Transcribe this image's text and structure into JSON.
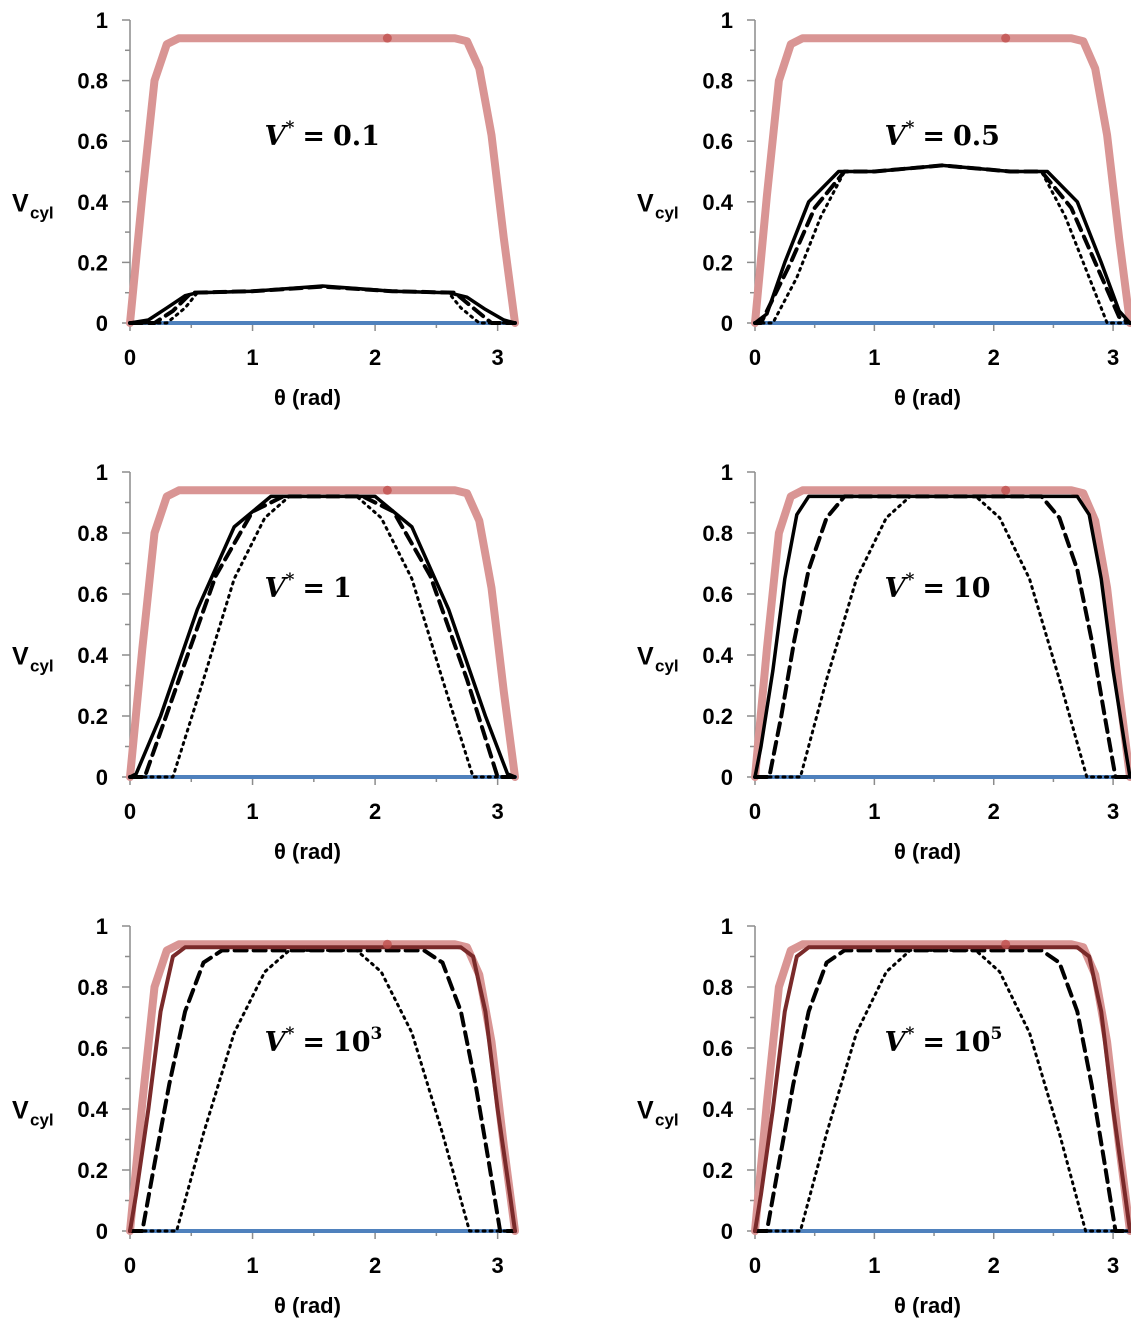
{
  "chart_data": [
    {
      "type": "line",
      "annotation": {
        "symbol": "V",
        "superscript": "*",
        "operator": "=",
        "value": "0.1",
        "exponent": ""
      },
      "xlabel": "θ (rad)",
      "ylabel": "V",
      "ylabel_sub": "cyl",
      "xlim": [
        0,
        3.1416
      ],
      "ylim": [
        0,
        1
      ],
      "xticks": [
        "0",
        "1",
        "2",
        "3"
      ],
      "yticks": [
        "0",
        "0.2",
        "0.4",
        "0.6",
        "0.8",
        "1"
      ],
      "series": [
        {
          "style": "pink",
          "x": [
            0,
            0.1,
            0.2,
            0.3,
            0.4,
            0.5,
            2.65,
            2.75,
            2.85,
            2.95,
            3.05,
            3.1416
          ],
          "values": [
            0,
            0.42,
            0.8,
            0.92,
            0.94,
            0.94,
            0.94,
            0.93,
            0.84,
            0.62,
            0.28,
            0
          ]
        },
        {
          "style": "blue",
          "x": [
            0,
            3.1416
          ],
          "values": [
            0,
            0
          ]
        },
        {
          "style": "dotted",
          "x": [
            0,
            0.3,
            0.45,
            0.55,
            1.0,
            1.57,
            2.14,
            2.6,
            2.7,
            2.85,
            3.1416
          ],
          "values": [
            0,
            0,
            0.05,
            0.1,
            0.105,
            0.12,
            0.105,
            0.1,
            0.05,
            0,
            0
          ]
        },
        {
          "style": "dashed",
          "x": [
            0,
            0.2,
            0.35,
            0.5,
            1.0,
            1.57,
            2.14,
            2.65,
            2.8,
            2.95,
            3.1416
          ],
          "values": [
            0,
            0,
            0.04,
            0.1,
            0.105,
            0.12,
            0.105,
            0.1,
            0.05,
            0,
            0
          ]
        },
        {
          "style": "solid",
          "x": [
            0,
            0.15,
            0.3,
            0.45,
            0.55,
            1.0,
            1.57,
            2.14,
            2.6,
            2.75,
            2.9,
            3.05,
            3.1416
          ],
          "values": [
            0,
            0.01,
            0.05,
            0.09,
            0.1,
            0.105,
            0.122,
            0.105,
            0.1,
            0.085,
            0.045,
            0.01,
            0
          ]
        }
      ]
    },
    {
      "type": "line",
      "annotation": {
        "symbol": "V",
        "superscript": "*",
        "operator": "=",
        "value": "0.5",
        "exponent": ""
      },
      "xlabel": "θ (rad)",
      "ylabel": "V",
      "ylabel_sub": "cyl",
      "xlim": [
        0,
        3.1416
      ],
      "ylim": [
        0,
        1
      ],
      "xticks": [
        "0",
        "1",
        "2",
        "3"
      ],
      "yticks": [
        "0",
        "0.2",
        "0.4",
        "0.6",
        "0.8",
        "1"
      ],
      "series": [
        {
          "style": "pink",
          "x": [
            0,
            0.1,
            0.2,
            0.3,
            0.4,
            0.5,
            2.65,
            2.75,
            2.85,
            2.95,
            3.05,
            3.1416
          ],
          "values": [
            0,
            0.42,
            0.8,
            0.92,
            0.94,
            0.94,
            0.94,
            0.93,
            0.84,
            0.62,
            0.28,
            0
          ]
        },
        {
          "style": "blue",
          "x": [
            0,
            3.1416
          ],
          "values": [
            0,
            0
          ]
        },
        {
          "style": "dotted",
          "x": [
            0,
            0.15,
            0.35,
            0.55,
            0.75,
            1.0,
            1.57,
            2.14,
            2.4,
            2.6,
            2.8,
            2.95,
            3.1416
          ],
          "values": [
            0,
            0,
            0.15,
            0.35,
            0.5,
            0.5,
            0.52,
            0.5,
            0.5,
            0.35,
            0.15,
            0,
            0
          ]
        },
        {
          "style": "dashed",
          "x": [
            0,
            0.05,
            0.3,
            0.5,
            0.75,
            1.0,
            1.57,
            2.14,
            2.4,
            2.65,
            2.85,
            3.05,
            3.1416
          ],
          "values": [
            0,
            0,
            0.2,
            0.38,
            0.5,
            0.5,
            0.52,
            0.5,
            0.5,
            0.38,
            0.2,
            0.02,
            0
          ]
        },
        {
          "style": "solid",
          "x": [
            0,
            0.1,
            0.25,
            0.45,
            0.7,
            1.0,
            1.57,
            2.14,
            2.45,
            2.7,
            2.9,
            3.05,
            3.1416
          ],
          "values": [
            0,
            0.03,
            0.2,
            0.4,
            0.5,
            0.5,
            0.52,
            0.5,
            0.5,
            0.4,
            0.2,
            0.04,
            0
          ]
        }
      ]
    },
    {
      "type": "line",
      "annotation": {
        "symbol": "V",
        "superscript": "*",
        "operator": "=",
        "value": "1",
        "exponent": ""
      },
      "xlabel": "θ (rad)",
      "ylabel": "V",
      "ylabel_sub": "cyl",
      "xlim": [
        0,
        3.1416
      ],
      "ylim": [
        0,
        1
      ],
      "xticks": [
        "0",
        "1",
        "2",
        "3"
      ],
      "yticks": [
        "0",
        "0.2",
        "0.4",
        "0.6",
        "0.8",
        "1"
      ],
      "series": [
        {
          "style": "pink",
          "x": [
            0,
            0.1,
            0.2,
            0.3,
            0.4,
            0.5,
            2.65,
            2.75,
            2.85,
            2.95,
            3.05,
            3.1416
          ],
          "values": [
            0,
            0.42,
            0.8,
            0.92,
            0.94,
            0.94,
            0.94,
            0.93,
            0.84,
            0.62,
            0.28,
            0
          ]
        },
        {
          "style": "blue",
          "x": [
            0,
            3.1416
          ],
          "values": [
            0,
            0
          ]
        },
        {
          "style": "dotted",
          "x": [
            0,
            0.35,
            0.6,
            0.85,
            1.1,
            1.3,
            1.57,
            1.85,
            2.05,
            2.3,
            2.55,
            2.8,
            3.1416
          ],
          "values": [
            0,
            0,
            0.32,
            0.65,
            0.85,
            0.92,
            0.92,
            0.92,
            0.85,
            0.65,
            0.32,
            0,
            0
          ]
        },
        {
          "style": "dashed",
          "x": [
            0,
            0.12,
            0.4,
            0.7,
            1.0,
            1.25,
            1.57,
            1.9,
            2.15,
            2.45,
            2.75,
            3.0,
            3.1416
          ],
          "values": [
            0,
            0,
            0.32,
            0.66,
            0.87,
            0.92,
            0.92,
            0.92,
            0.87,
            0.66,
            0.32,
            0,
            0
          ]
        },
        {
          "style": "solid",
          "x": [
            0,
            0.05,
            0.25,
            0.55,
            0.85,
            1.15,
            1.57,
            2.0,
            2.3,
            2.6,
            2.9,
            3.08,
            3.1416
          ],
          "values": [
            0,
            0.01,
            0.2,
            0.55,
            0.82,
            0.92,
            0.92,
            0.92,
            0.82,
            0.55,
            0.2,
            0.01,
            0
          ]
        }
      ]
    },
    {
      "type": "line",
      "annotation": {
        "symbol": "V",
        "superscript": "*",
        "operator": "=",
        "value": "10",
        "exponent": ""
      },
      "xlabel": "θ (rad)",
      "ylabel": "V",
      "ylabel_sub": "cyl",
      "xlim": [
        0,
        3.1416
      ],
      "ylim": [
        0,
        1
      ],
      "xticks": [
        "0",
        "1",
        "2",
        "3"
      ],
      "yticks": [
        "0",
        "0.2",
        "0.4",
        "0.6",
        "0.8",
        "1"
      ],
      "series": [
        {
          "style": "pink",
          "x": [
            0,
            0.1,
            0.2,
            0.3,
            0.4,
            0.5,
            2.65,
            2.75,
            2.85,
            2.95,
            3.05,
            3.1416
          ],
          "values": [
            0,
            0.42,
            0.8,
            0.92,
            0.94,
            0.94,
            0.94,
            0.93,
            0.84,
            0.62,
            0.28,
            0
          ]
        },
        {
          "style": "blue",
          "x": [
            0,
            3.1416
          ],
          "values": [
            0,
            0
          ]
        },
        {
          "style": "dotted",
          "x": [
            0,
            0.38,
            0.6,
            0.85,
            1.1,
            1.3,
            1.57,
            1.85,
            2.05,
            2.3,
            2.55,
            2.78,
            3.1416
          ],
          "values": [
            0,
            0,
            0.32,
            0.65,
            0.85,
            0.92,
            0.92,
            0.92,
            0.85,
            0.65,
            0.32,
            0,
            0
          ]
        },
        {
          "style": "dashed",
          "x": [
            0,
            0.12,
            0.22,
            0.33,
            0.45,
            0.6,
            0.75,
            2.4,
            2.55,
            2.7,
            2.82,
            2.93,
            3.02,
            3.1416
          ],
          "values": [
            0,
            0,
            0.2,
            0.45,
            0.68,
            0.85,
            0.92,
            0.92,
            0.85,
            0.68,
            0.45,
            0.2,
            0,
            0
          ]
        },
        {
          "style": "solid",
          "x": [
            0,
            0.05,
            0.15,
            0.25,
            0.35,
            0.45,
            2.7,
            2.8,
            2.9,
            3.0,
            3.1,
            3.1416
          ],
          "values": [
            0,
            0.1,
            0.35,
            0.65,
            0.86,
            0.92,
            0.92,
            0.86,
            0.65,
            0.35,
            0.1,
            0
          ]
        }
      ]
    },
    {
      "type": "line",
      "annotation": {
        "symbol": "V",
        "superscript": "*",
        "operator": "=",
        "value": "10",
        "exponent": "3"
      },
      "xlabel": "θ (rad)",
      "ylabel": "V",
      "ylabel_sub": "cyl",
      "xlim": [
        0,
        3.1416
      ],
      "ylim": [
        0,
        1
      ],
      "xticks": [
        "0",
        "1",
        "2",
        "3"
      ],
      "yticks": [
        "0",
        "0.2",
        "0.4",
        "0.6",
        "0.8",
        "1"
      ],
      "series": [
        {
          "style": "pink",
          "x": [
            0,
            0.1,
            0.2,
            0.3,
            0.4,
            0.5,
            2.65,
            2.75,
            2.85,
            2.95,
            3.05,
            3.1416
          ],
          "values": [
            0,
            0.42,
            0.8,
            0.92,
            0.94,
            0.94,
            0.94,
            0.93,
            0.84,
            0.62,
            0.28,
            0
          ]
        },
        {
          "style": "blue",
          "x": [
            0,
            3.1416
          ],
          "values": [
            0,
            0
          ]
        },
        {
          "style": "dotted",
          "x": [
            0,
            0.38,
            0.6,
            0.85,
            1.1,
            1.3,
            1.57,
            1.85,
            2.05,
            2.3,
            2.55,
            2.77,
            3.1416
          ],
          "values": [
            0,
            0,
            0.32,
            0.65,
            0.85,
            0.92,
            0.92,
            0.92,
            0.85,
            0.65,
            0.32,
            0,
            0
          ]
        },
        {
          "style": "dashed",
          "x": [
            0,
            0.1,
            0.2,
            0.32,
            0.45,
            0.6,
            0.75,
            2.4,
            2.55,
            2.7,
            2.82,
            2.93,
            3.02,
            3.1416
          ],
          "values": [
            0,
            0,
            0.22,
            0.48,
            0.72,
            0.88,
            0.92,
            0.92,
            0.88,
            0.72,
            0.48,
            0.22,
            0,
            0
          ]
        },
        {
          "style": "dark",
          "x": [
            0,
            0.05,
            0.15,
            0.25,
            0.35,
            0.45,
            2.7,
            2.8,
            2.9,
            3.0,
            3.1,
            3.1416
          ],
          "values": [
            0,
            0.12,
            0.4,
            0.72,
            0.9,
            0.93,
            0.93,
            0.9,
            0.72,
            0.4,
            0.12,
            0
          ]
        }
      ]
    },
    {
      "type": "line",
      "annotation": {
        "symbol": "V",
        "superscript": "*",
        "operator": "=",
        "value": "10",
        "exponent": "5"
      },
      "xlabel": "θ (rad)",
      "ylabel": "V",
      "ylabel_sub": "cyl",
      "xlim": [
        0,
        3.1416
      ],
      "ylim": [
        0,
        1
      ],
      "xticks": [
        "0",
        "1",
        "2",
        "3"
      ],
      "yticks": [
        "0",
        "0.2",
        "0.4",
        "0.6",
        "0.8",
        "1"
      ],
      "series": [
        {
          "style": "pink",
          "x": [
            0,
            0.1,
            0.2,
            0.3,
            0.4,
            0.5,
            2.65,
            2.75,
            2.85,
            2.95,
            3.05,
            3.1416
          ],
          "values": [
            0,
            0.42,
            0.8,
            0.92,
            0.94,
            0.94,
            0.94,
            0.93,
            0.84,
            0.62,
            0.28,
            0
          ]
        },
        {
          "style": "blue",
          "x": [
            0,
            3.1416
          ],
          "values": [
            0,
            0
          ]
        },
        {
          "style": "dotted",
          "x": [
            0,
            0.38,
            0.6,
            0.85,
            1.1,
            1.3,
            1.57,
            1.85,
            2.05,
            2.3,
            2.55,
            2.77,
            3.1416
          ],
          "values": [
            0,
            0,
            0.32,
            0.65,
            0.85,
            0.92,
            0.92,
            0.92,
            0.85,
            0.65,
            0.32,
            0,
            0
          ]
        },
        {
          "style": "dashed",
          "x": [
            0,
            0.1,
            0.2,
            0.32,
            0.45,
            0.6,
            0.75,
            2.4,
            2.55,
            2.7,
            2.82,
            2.93,
            3.02,
            3.1416
          ],
          "values": [
            0,
            0,
            0.22,
            0.48,
            0.72,
            0.88,
            0.92,
            0.92,
            0.88,
            0.72,
            0.48,
            0.22,
            0,
            0
          ]
        },
        {
          "style": "dark",
          "x": [
            0,
            0.05,
            0.15,
            0.25,
            0.35,
            0.45,
            2.7,
            2.8,
            2.9,
            3.0,
            3.1,
            3.1416
          ],
          "values": [
            0,
            0.12,
            0.4,
            0.72,
            0.9,
            0.93,
            0.93,
            0.9,
            0.72,
            0.4,
            0.12,
            0
          ]
        }
      ]
    }
  ],
  "colors": {
    "pink": "#d99594",
    "blue": "#4f81bd",
    "black": "#000000",
    "dark": "#7a2a2a",
    "axis": "#8c8c8c"
  }
}
